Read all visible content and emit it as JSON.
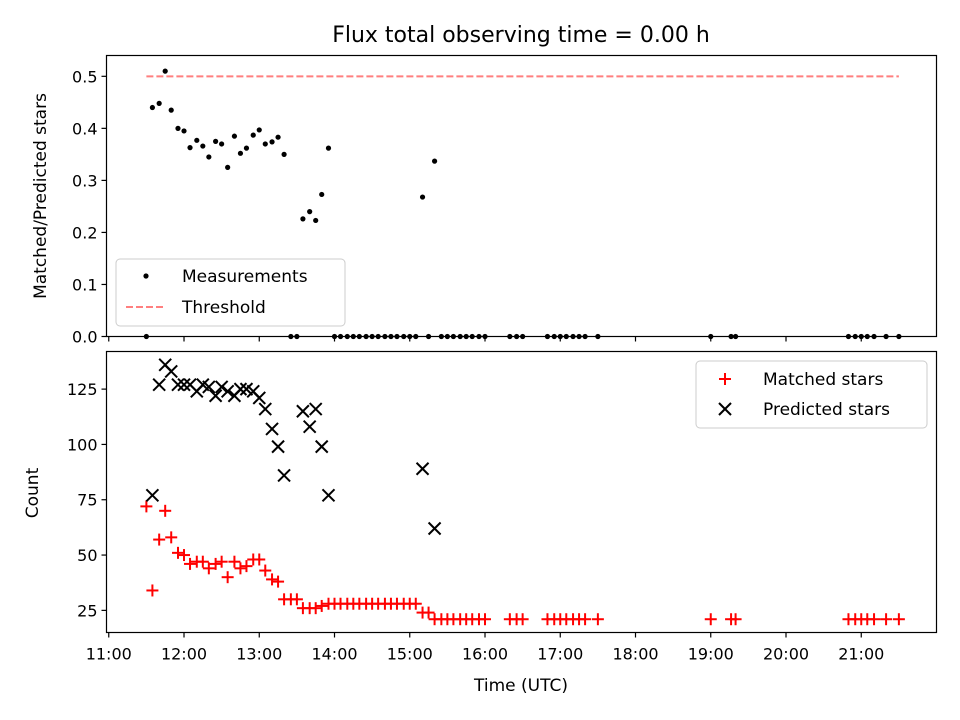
{
  "chart_data": [
    {
      "type": "scatter",
      "title": "Flux total observing time = 0.00 h",
      "ylabel": "Matched/Predicted stars",
      "xlabel": "",
      "xlim_hours": [
        10.97,
        22.0
      ],
      "ylim": [
        0,
        0.54
      ],
      "yticks": [
        "0.0",
        "0.1",
        "0.2",
        "0.3",
        "0.4",
        "0.5"
      ],
      "ytick_values": [
        0,
        0.1,
        0.2,
        0.3,
        0.4,
        0.5
      ],
      "legend": {
        "placement": "lower-left",
        "entries": [
          "Measurements",
          "Threshold"
        ]
      },
      "series": [
        {
          "name": "Measurements",
          "marker": "dot",
          "color": "#000000",
          "x": [
            11.5,
            11.58,
            11.67,
            11.75,
            11.83,
            11.92,
            12.0,
            12.08,
            12.17,
            12.25,
            12.33,
            12.42,
            12.5,
            12.58,
            12.67,
            12.75,
            12.83,
            12.92,
            13.0,
            13.08,
            13.17,
            13.25,
            13.33,
            13.42,
            13.5,
            13.58,
            13.67,
            13.75,
            13.83,
            13.92,
            14.0,
            14.08,
            14.17,
            14.25,
            14.33,
            14.42,
            14.5,
            14.58,
            14.67,
            14.75,
            14.83,
            14.92,
            15.0,
            15.08,
            15.17,
            15.25,
            15.33,
            15.42,
            15.5,
            15.58,
            15.67,
            15.75,
            15.83,
            15.92,
            16.0,
            16.33,
            16.42,
            16.5,
            16.83,
            16.92,
            17.0,
            17.08,
            17.17,
            17.25,
            17.33,
            17.5,
            19.0,
            19.27,
            19.33,
            20.83,
            20.92,
            21.0,
            21.08,
            21.17,
            21.33,
            21.5
          ],
          "y": [
            0.0,
            0.44,
            0.448,
            0.51,
            0.435,
            0.4,
            0.395,
            0.363,
            0.377,
            0.366,
            0.345,
            0.375,
            0.37,
            0.325,
            0.385,
            0.352,
            0.362,
            0.387,
            0.397,
            0.37,
            0.374,
            0.383,
            0.35,
            0.0,
            0.0,
            0.226,
            0.24,
            0.223,
            0.273,
            0.362,
            0.0,
            0.0,
            0.0,
            0.0,
            0.0,
            0.0,
            0.0,
            0.0,
            0.0,
            0.0,
            0.0,
            0.0,
            0.0,
            0.0,
            0.268,
            0.0,
            0.337,
            0.0,
            0.0,
            0.0,
            0.0,
            0.0,
            0.0,
            0.0,
            0.0,
            0.0,
            0.0,
            0.0,
            0.0,
            0.0,
            0.0,
            0.0,
            0.0,
            0.0,
            0.0,
            0.0,
            0.0,
            0.0,
            0.0,
            0.0,
            0.0,
            0.0,
            0.0,
            0.0,
            0.0,
            0.0
          ]
        },
        {
          "name": "Threshold",
          "marker": "dashed-line",
          "color": "#ff7f7f",
          "x": [
            11.5,
            21.5
          ],
          "y": [
            0.5,
            0.5
          ]
        }
      ]
    },
    {
      "type": "scatter",
      "title": "",
      "ylabel": "Count",
      "xlabel": "Time (UTC)",
      "xlim_hours": [
        10.97,
        22.0
      ],
      "ylim": [
        15,
        142
      ],
      "yticks": [
        "25",
        "50",
        "75",
        "100",
        "125"
      ],
      "ytick_values": [
        25,
        50,
        75,
        100,
        125
      ],
      "xticks": [
        "11:00",
        "12:00",
        "13:00",
        "14:00",
        "15:00",
        "16:00",
        "17:00",
        "18:00",
        "19:00",
        "20:00",
        "21:00"
      ],
      "xtick_values": [
        11,
        12,
        13,
        14,
        15,
        16,
        17,
        18,
        19,
        20,
        21
      ],
      "legend": {
        "placement": "upper-right",
        "entries": [
          "Matched stars",
          "Predicted stars"
        ]
      },
      "series": [
        {
          "name": "Matched stars",
          "marker": "plus",
          "color": "#ff0000",
          "x": [
            11.5,
            11.58,
            11.67,
            11.75,
            11.83,
            11.92,
            12.0,
            12.08,
            12.17,
            12.25,
            12.33,
            12.42,
            12.5,
            12.58,
            12.67,
            12.75,
            12.83,
            12.92,
            13.0,
            13.08,
            13.17,
            13.25,
            13.33,
            13.42,
            13.5,
            13.58,
            13.67,
            13.75,
            13.83,
            13.92,
            14.0,
            14.08,
            14.17,
            14.25,
            14.33,
            14.42,
            14.5,
            14.58,
            14.67,
            14.75,
            14.83,
            14.92,
            15.0,
            15.08,
            15.17,
            15.25,
            15.33,
            15.42,
            15.5,
            15.58,
            15.67,
            15.75,
            15.83,
            15.92,
            16.0,
            16.33,
            16.42,
            16.5,
            16.83,
            16.92,
            17.0,
            17.08,
            17.17,
            17.25,
            17.33,
            17.5,
            19.0,
            19.27,
            19.33,
            20.83,
            20.92,
            21.0,
            21.08,
            21.17,
            21.33,
            21.5
          ],
          "y": [
            72,
            34,
            57,
            70,
            58,
            51,
            50,
            46,
            47,
            47,
            44,
            46,
            47,
            40,
            47,
            44,
            45,
            48,
            48,
            43,
            39,
            38,
            30,
            30,
            30,
            26,
            26,
            26,
            27,
            28,
            28,
            28,
            28,
            28,
            28,
            28,
            28,
            28,
            28,
            28,
            28,
            28,
            28,
            28,
            24,
            24,
            21,
            21,
            21,
            21,
            21,
            21,
            21,
            21,
            21,
            21,
            21,
            21,
            21,
            21,
            21,
            21,
            21,
            21,
            21,
            21,
            21,
            21,
            21,
            21,
            21,
            21,
            21,
            21,
            21,
            21
          ]
        },
        {
          "name": "Predicted stars",
          "marker": "x",
          "color": "#000000",
          "x": [
            11.58,
            11.67,
            11.75,
            11.83,
            11.92,
            12.0,
            12.08,
            12.17,
            12.25,
            12.33,
            12.42,
            12.5,
            12.58,
            12.67,
            12.75,
            12.83,
            12.92,
            13.0,
            13.08,
            13.17,
            13.25,
            13.33,
            13.58,
            13.67,
            13.75,
            13.83,
            13.92,
            15.17,
            15.33
          ],
          "y": [
            77,
            127,
            136,
            133,
            127,
            127,
            127,
            124,
            127,
            126,
            122,
            126,
            124,
            122,
            125,
            125,
            124,
            121,
            116,
            107,
            99,
            86,
            115,
            108,
            116,
            99,
            77,
            89,
            62
          ]
        }
      ]
    }
  ]
}
